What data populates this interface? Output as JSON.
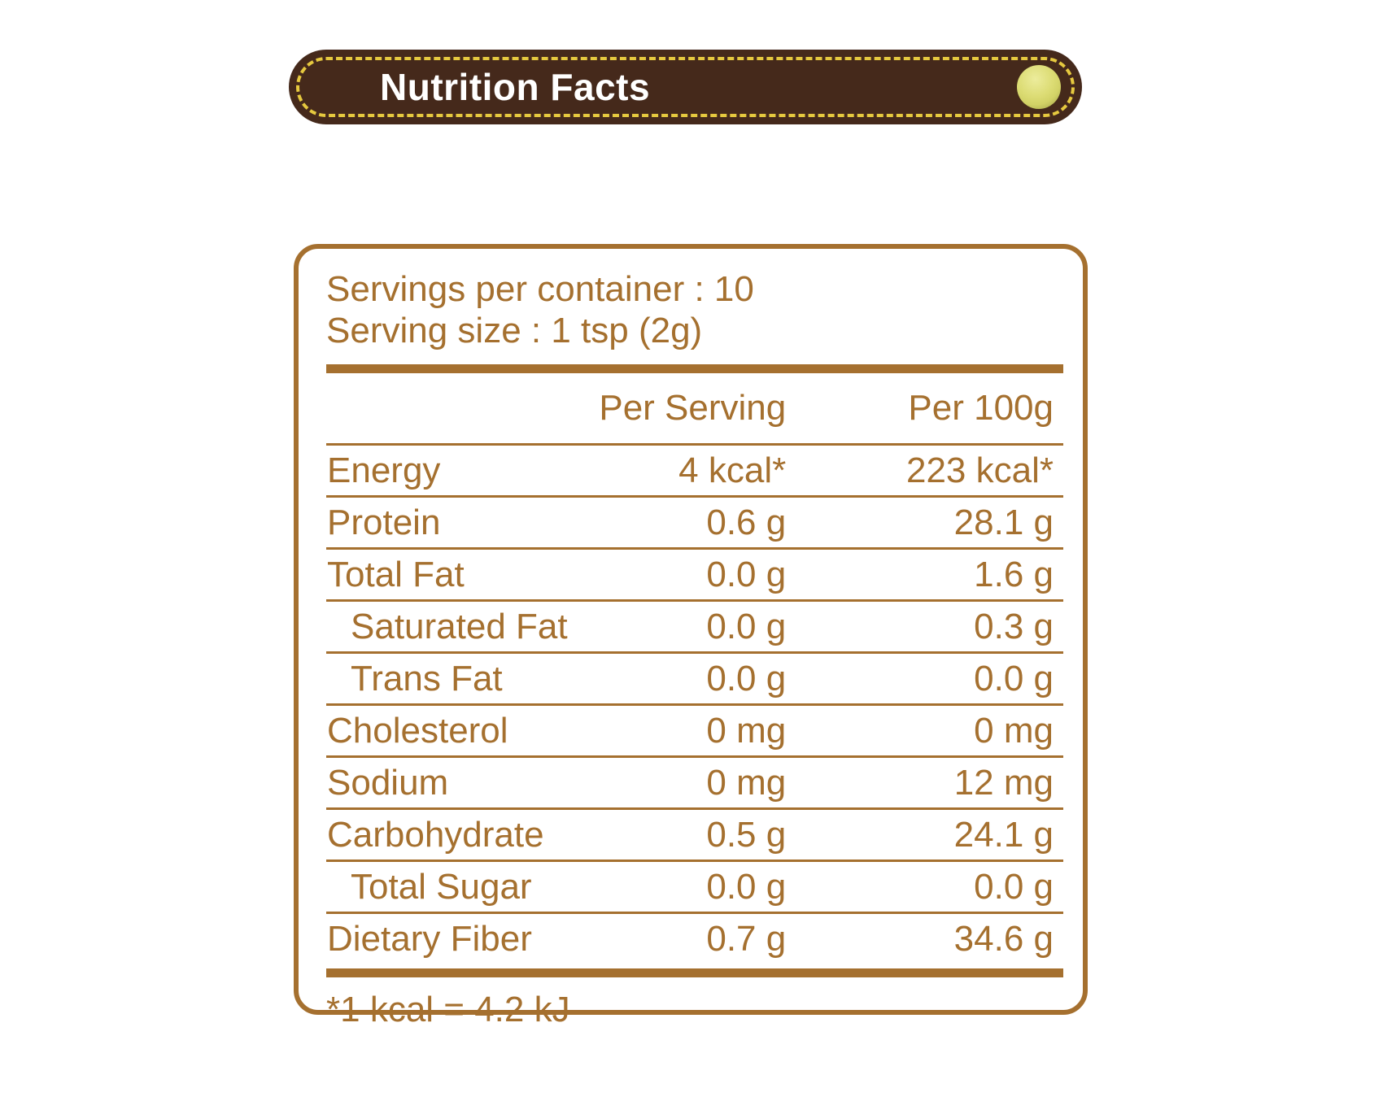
{
  "banner": {
    "title": "Nutrition Facts"
  },
  "label": {
    "servings_per_container_line": "Servings per container : 10",
    "serving_size_line": "Serving size : 1 tsp (2g)",
    "columns": [
      "",
      "Per Serving",
      "Per 100g"
    ],
    "rows": [
      {
        "name": "Energy",
        "per_serving": "4 kcal*",
        "per_100g": "223 kcal*",
        "indent": false
      },
      {
        "name": "Protein",
        "per_serving": "0.6 g",
        "per_100g": "28.1 g",
        "indent": false
      },
      {
        "name": "Total Fat",
        "per_serving": "0.0 g",
        "per_100g": "1.6 g",
        "indent": false
      },
      {
        "name": "Saturated Fat",
        "per_serving": "0.0 g",
        "per_100g": "0.3 g",
        "indent": true
      },
      {
        "name": "Trans Fat",
        "per_serving": "0.0 g",
        "per_100g": "0.0 g",
        "indent": true
      },
      {
        "name": "Cholesterol",
        "per_serving": "0 mg",
        "per_100g": "0 mg",
        "indent": false
      },
      {
        "name": "Sodium",
        "per_serving": "0 mg",
        "per_100g": "12 mg",
        "indent": false
      },
      {
        "name": "Carbohydrate",
        "per_serving": "0.5 g",
        "per_100g": "24.1 g",
        "indent": false
      },
      {
        "name": "Total Sugar",
        "per_serving": "0.0 g",
        "per_100g": "0.0 g",
        "indent": true
      },
      {
        "name": "Dietary Fiber",
        "per_serving": "0.7 g",
        "per_100g": "34.6 g",
        "indent": false
      }
    ],
    "footnote": "*1 kcal = 4.2 kJ"
  },
  "colors": {
    "label_brown": "#A5702F",
    "banner_brown": "#45291B",
    "dash_yellow": "#E6C93F",
    "button_yellow": "#DCDC74",
    "title_white": "#FFFFFF"
  }
}
